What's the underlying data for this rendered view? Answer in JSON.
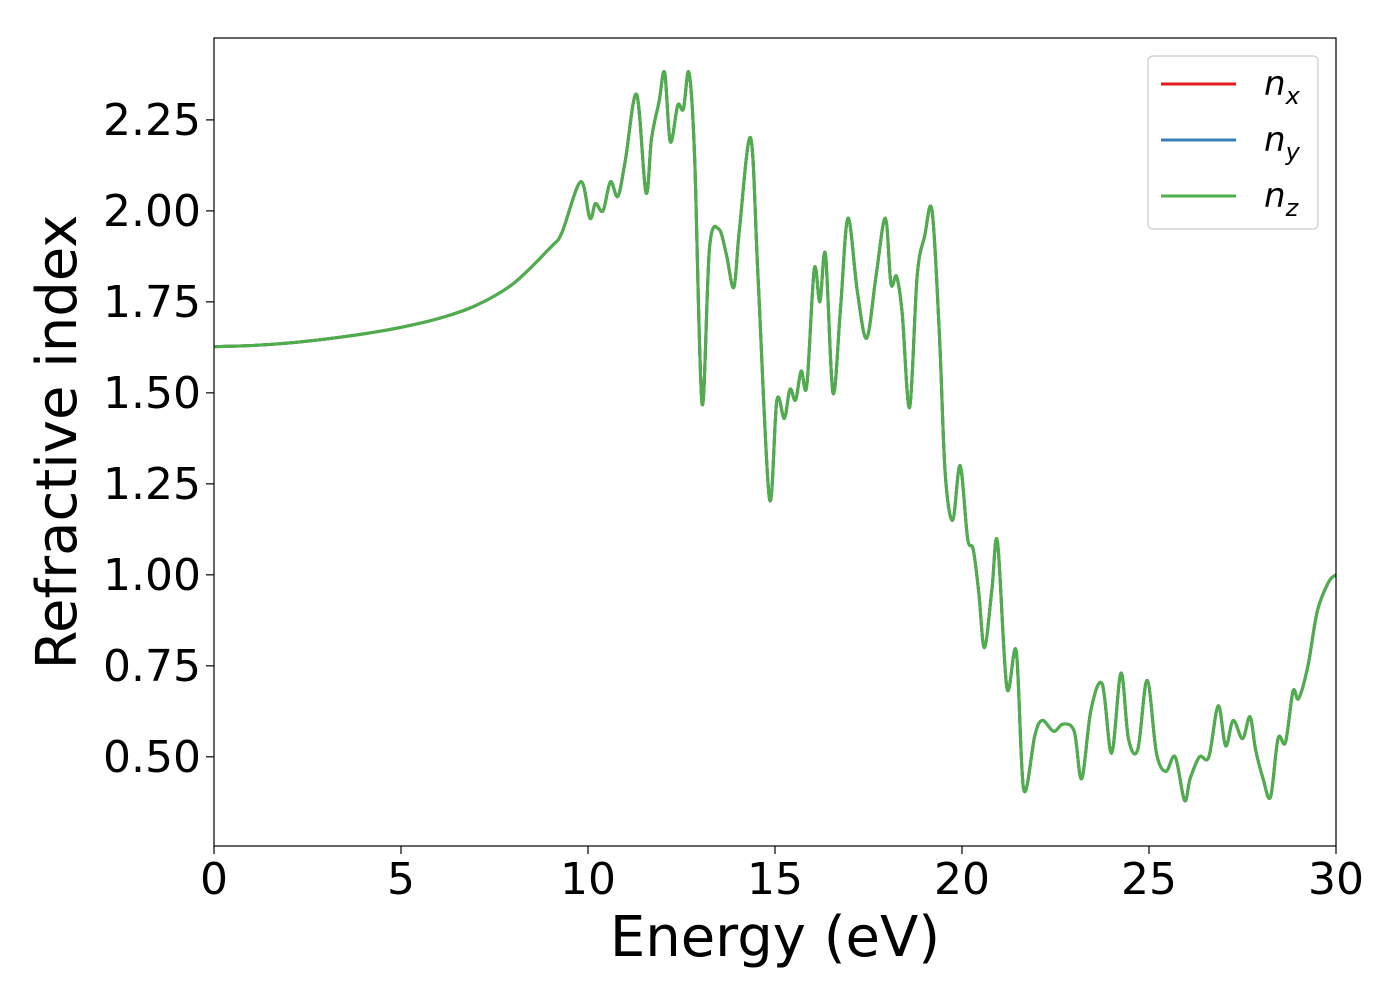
{
  "chart_data": {
    "type": "line",
    "xlabel": "Energy (eV)",
    "ylabel": "Refractive index",
    "xlim": [
      0,
      30
    ],
    "ylim": [
      0.255,
      2.475
    ],
    "xticks": [
      0,
      5,
      10,
      15,
      20,
      25,
      30
    ],
    "xtick_labels": [
      "0",
      "5",
      "10",
      "15",
      "20",
      "25",
      "30"
    ],
    "yticks": [
      0.5,
      0.75,
      1.0,
      1.25,
      1.5,
      1.75,
      2.0,
      2.25
    ],
    "ytick_labels": [
      "0.50",
      "0.75",
      "1.00",
      "1.25",
      "1.50",
      "1.75",
      "2.00",
      "2.25"
    ],
    "grid": false,
    "legend_position": "top-right",
    "x": [
      0,
      1,
      2,
      3,
      4,
      5,
      6,
      7,
      8,
      9,
      9.3,
      9.8,
      10.05,
      10.2,
      10.4,
      10.6,
      10.8,
      11.0,
      11.3,
      11.55,
      11.7,
      11.9,
      12.05,
      12.2,
      12.4,
      12.55,
      12.7,
      12.85,
      13.05,
      13.25,
      13.5,
      13.7,
      13.9,
      14.05,
      14.35,
      14.55,
      14.85,
      15.05,
      15.25,
      15.4,
      15.55,
      15.7,
      15.85,
      16.05,
      16.2,
      16.35,
      16.55,
      16.75,
      16.95,
      17.2,
      17.45,
      17.7,
      17.95,
      18.1,
      18.25,
      18.4,
      18.6,
      18.8,
      19.0,
      19.2,
      19.4,
      19.55,
      19.75,
      19.95,
      20.15,
      20.3,
      20.45,
      20.6,
      20.8,
      20.95,
      21.2,
      21.45,
      21.65,
      21.95,
      22.15,
      22.45,
      22.7,
      23.0,
      23.2,
      23.45,
      23.75,
      24.0,
      24.25,
      24.45,
      24.7,
      24.95,
      25.2,
      25.45,
      25.7,
      25.95,
      26.1,
      26.35,
      26.6,
      26.85,
      27.05,
      27.25,
      27.5,
      27.7,
      27.85,
      28.05,
      28.25,
      28.45,
      28.65,
      28.85,
      29.0,
      29.25,
      29.5,
      29.8,
      30.0
    ],
    "series": [
      {
        "name": "n_x",
        "label_main": "n",
        "label_sub": "x",
        "color": "#e41a1c",
        "y": [
          1.627,
          1.63,
          1.637,
          1.648,
          1.662,
          1.68,
          1.704,
          1.74,
          1.8,
          1.9,
          1.94,
          2.08,
          1.98,
          2.02,
          2.0,
          2.08,
          2.04,
          2.14,
          2.32,
          2.05,
          2.2,
          2.3,
          2.38,
          2.19,
          2.29,
          2.28,
          2.38,
          2.15,
          1.47,
          1.9,
          1.95,
          1.88,
          1.79,
          1.95,
          2.2,
          1.81,
          1.21,
          1.48,
          1.43,
          1.51,
          1.48,
          1.56,
          1.52,
          1.84,
          1.75,
          1.88,
          1.5,
          1.73,
          1.98,
          1.78,
          1.65,
          1.82,
          1.98,
          1.8,
          1.82,
          1.72,
          1.46,
          1.82,
          1.93,
          2.0,
          1.65,
          1.28,
          1.15,
          1.3,
          1.1,
          1.07,
          0.95,
          0.8,
          0.96,
          1.09,
          0.69,
          0.79,
          0.41,
          0.56,
          0.6,
          0.57,
          0.59,
          0.57,
          0.44,
          0.63,
          0.7,
          0.51,
          0.73,
          0.55,
          0.52,
          0.71,
          0.51,
          0.46,
          0.5,
          0.38,
          0.44,
          0.5,
          0.5,
          0.64,
          0.53,
          0.6,
          0.55,
          0.61,
          0.52,
          0.44,
          0.39,
          0.55,
          0.54,
          0.68,
          0.66,
          0.75,
          0.9,
          0.98,
          1.0
        ]
      },
      {
        "name": "n_y",
        "label_main": "n",
        "label_sub": "y",
        "color": "#377eb8",
        "y": [
          1.627,
          1.63,
          1.637,
          1.648,
          1.662,
          1.68,
          1.704,
          1.74,
          1.8,
          1.9,
          1.94,
          2.08,
          1.98,
          2.02,
          2.0,
          2.08,
          2.04,
          2.14,
          2.32,
          2.05,
          2.2,
          2.3,
          2.38,
          2.19,
          2.29,
          2.28,
          2.38,
          2.15,
          1.47,
          1.9,
          1.95,
          1.88,
          1.79,
          1.95,
          2.2,
          1.81,
          1.21,
          1.48,
          1.43,
          1.51,
          1.48,
          1.56,
          1.52,
          1.84,
          1.75,
          1.88,
          1.5,
          1.73,
          1.98,
          1.78,
          1.65,
          1.82,
          1.98,
          1.8,
          1.82,
          1.72,
          1.46,
          1.82,
          1.93,
          2.0,
          1.65,
          1.28,
          1.15,
          1.3,
          1.1,
          1.07,
          0.95,
          0.8,
          0.96,
          1.09,
          0.69,
          0.79,
          0.41,
          0.56,
          0.6,
          0.57,
          0.59,
          0.57,
          0.44,
          0.63,
          0.7,
          0.51,
          0.73,
          0.55,
          0.52,
          0.71,
          0.51,
          0.46,
          0.5,
          0.38,
          0.44,
          0.5,
          0.5,
          0.64,
          0.53,
          0.6,
          0.55,
          0.61,
          0.52,
          0.44,
          0.39,
          0.55,
          0.54,
          0.68,
          0.66,
          0.75,
          0.9,
          0.98,
          1.0
        ]
      },
      {
        "name": "n_z",
        "label_main": "n",
        "label_sub": "z",
        "color": "#4daf4a",
        "y": [
          1.627,
          1.63,
          1.637,
          1.648,
          1.662,
          1.68,
          1.704,
          1.74,
          1.8,
          1.9,
          1.94,
          2.08,
          1.98,
          2.02,
          2.0,
          2.08,
          2.04,
          2.14,
          2.32,
          2.05,
          2.2,
          2.3,
          2.38,
          2.19,
          2.29,
          2.28,
          2.38,
          2.15,
          1.47,
          1.9,
          1.95,
          1.88,
          1.79,
          1.95,
          2.2,
          1.81,
          1.21,
          1.48,
          1.43,
          1.51,
          1.48,
          1.56,
          1.52,
          1.84,
          1.75,
          1.88,
          1.5,
          1.73,
          1.98,
          1.78,
          1.65,
          1.82,
          1.98,
          1.8,
          1.82,
          1.72,
          1.46,
          1.82,
          1.93,
          2.0,
          1.65,
          1.28,
          1.15,
          1.3,
          1.1,
          1.07,
          0.95,
          0.8,
          0.96,
          1.09,
          0.69,
          0.79,
          0.41,
          0.56,
          0.6,
          0.57,
          0.59,
          0.57,
          0.44,
          0.63,
          0.7,
          0.51,
          0.73,
          0.55,
          0.52,
          0.71,
          0.51,
          0.46,
          0.5,
          0.38,
          0.44,
          0.5,
          0.5,
          0.64,
          0.53,
          0.6,
          0.55,
          0.61,
          0.52,
          0.44,
          0.39,
          0.55,
          0.54,
          0.68,
          0.66,
          0.75,
          0.9,
          0.98,
          1.0
        ]
      }
    ]
  }
}
